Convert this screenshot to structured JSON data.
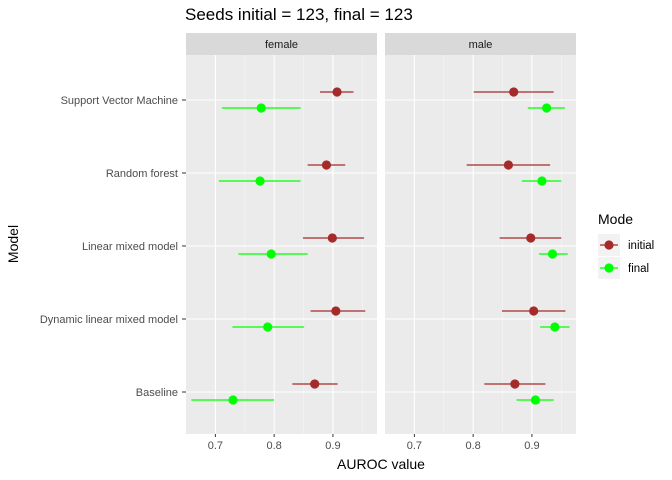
{
  "chart_data": {
    "type": "scatter",
    "subtype": "dot-and-errorbar, faceted",
    "title": "Seeds initial = 123, final = 123",
    "xlabel": "AUROC value",
    "ylabel": "Model",
    "xlim": [
      0.65,
      0.975
    ],
    "x_ticks": [
      0.7,
      0.8,
      0.9
    ],
    "x_tick_labels": [
      "0.7",
      "0.8",
      "0.9"
    ],
    "grid": true,
    "legend_position": "right",
    "legend": {
      "title": "Mode",
      "entries": [
        {
          "label": "initial",
          "color": "#a52a2a"
        },
        {
          "label": "final",
          "color": "#00ff00"
        }
      ]
    },
    "categories": [
      "Support Vector Machine",
      "Random forest",
      "Linear mixed model",
      "Dynamic linear mixed model",
      "Baseline"
    ],
    "facets": [
      {
        "name": "female",
        "series": [
          {
            "name": "initial",
            "color": "#a52a2a",
            "points": [
              {
                "model": "Support Vector Machine",
                "value": 0.907,
                "low": 0.878,
                "high": 0.935
              },
              {
                "model": "Random forest",
                "value": 0.889,
                "low": 0.857,
                "high": 0.921
              },
              {
                "model": "Linear mixed model",
                "value": 0.899,
                "low": 0.849,
                "high": 0.953
              },
              {
                "model": "Dynamic linear mixed model",
                "value": 0.905,
                "low": 0.862,
                "high": 0.955
              },
              {
                "model": "Baseline",
                "value": 0.869,
                "low": 0.831,
                "high": 0.908
              }
            ]
          },
          {
            "name": "final",
            "color": "#00ff00",
            "points": [
              {
                "model": "Support Vector Machine",
                "value": 0.778,
                "low": 0.711,
                "high": 0.845
              },
              {
                "model": "Random forest",
                "value": 0.776,
                "low": 0.706,
                "high": 0.845
              },
              {
                "model": "Linear mixed model",
                "value": 0.795,
                "low": 0.739,
                "high": 0.857
              },
              {
                "model": "Dynamic linear mixed model",
                "value": 0.789,
                "low": 0.729,
                "high": 0.851
              },
              {
                "model": "Baseline",
                "value": 0.73,
                "low": 0.659,
                "high": 0.8
              }
            ]
          }
        ]
      },
      {
        "name": "male",
        "series": [
          {
            "name": "initial",
            "color": "#a52a2a",
            "points": [
              {
                "model": "Support Vector Machine",
                "value": 0.869,
                "low": 0.801,
                "high": 0.937
              },
              {
                "model": "Random forest",
                "value": 0.86,
                "low": 0.789,
                "high": 0.931
              },
              {
                "model": "Linear mixed model",
                "value": 0.898,
                "low": 0.845,
                "high": 0.95
              },
              {
                "model": "Dynamic linear mixed model",
                "value": 0.903,
                "low": 0.849,
                "high": 0.957
              },
              {
                "model": "Baseline",
                "value": 0.871,
                "low": 0.819,
                "high": 0.923
              }
            ]
          },
          {
            "name": "final",
            "color": "#00ff00",
            "points": [
              {
                "model": "Support Vector Machine",
                "value": 0.925,
                "low": 0.893,
                "high": 0.956
              },
              {
                "model": "Random forest",
                "value": 0.917,
                "low": 0.883,
                "high": 0.95
              },
              {
                "model": "Linear mixed model",
                "value": 0.935,
                "low": 0.912,
                "high": 0.961
              },
              {
                "model": "Dynamic linear mixed model",
                "value": 0.939,
                "low": 0.914,
                "high": 0.964
              },
              {
                "model": "Baseline",
                "value": 0.906,
                "low": 0.874,
                "high": 0.937
              }
            ]
          }
        ]
      }
    ]
  }
}
